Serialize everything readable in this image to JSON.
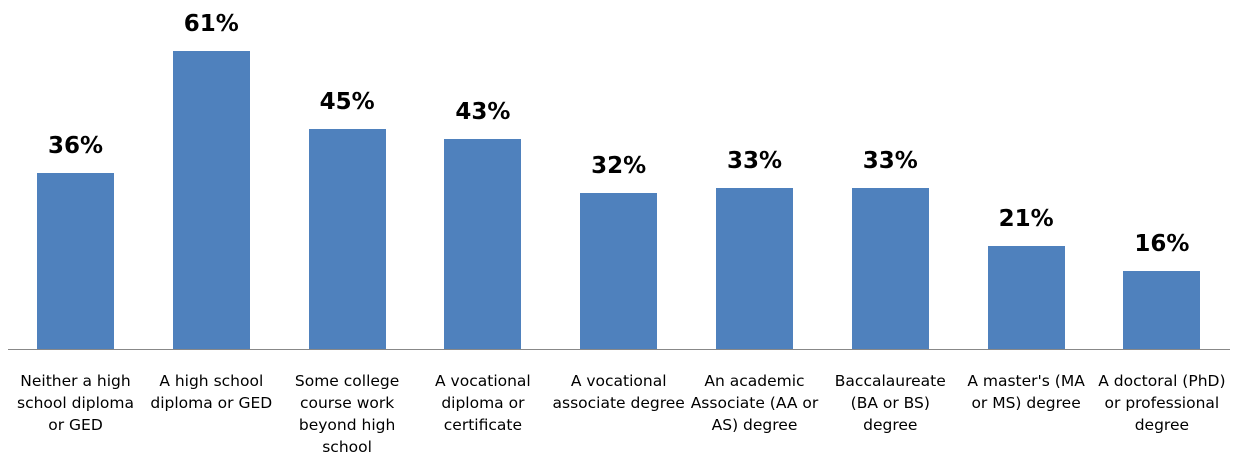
{
  "chart_data": {
    "type": "bar",
    "categories": [
      "Neither a high school diploma or GED",
      "A high school diploma or GED",
      "Some college course work beyond high school",
      "A vocational diploma or certificate",
      "A vocational associate degree",
      "An academic Associate (AA or AS) degree",
      "Baccalaureate (BA or BS) degree",
      "A master's (MA or MS) degree",
      "A doctoral (PhD) or professional degree"
    ],
    "values": [
      36,
      61,
      45,
      43,
      32,
      33,
      33,
      21,
      16
    ],
    "value_labels": [
      "36%",
      "61%",
      "45%",
      "43%",
      "32%",
      "33%",
      "33%",
      "21%",
      "16%"
    ],
    "color": "#4f81bd"
  }
}
